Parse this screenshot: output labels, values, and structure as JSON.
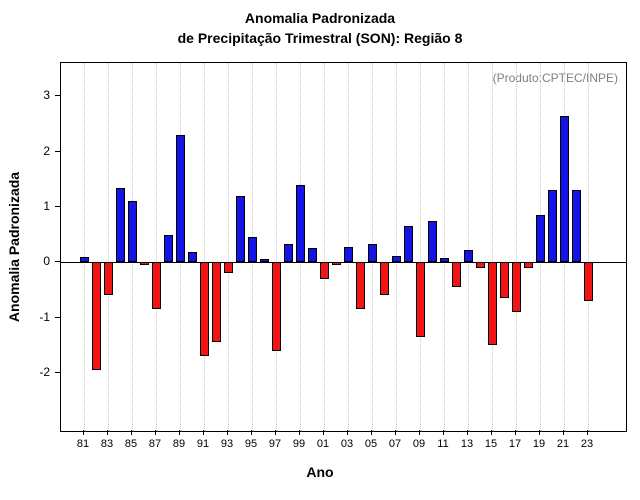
{
  "title": {
    "line1": "Anomalia Padronizada",
    "line2": "de Precipitação Trimestral (SON): Região 8"
  },
  "note": "(Produto:CPTEC/INPE)",
  "chart_data": {
    "type": "bar",
    "title": "Anomalia Padronizada de Precipitação Trimestral (SON): Região 8",
    "xlabel": "Ano",
    "ylabel": "Anomalia Padronizada",
    "years": [
      1981,
      1982,
      1983,
      1984,
      1985,
      1986,
      1987,
      1988,
      1989,
      1990,
      1991,
      1992,
      1993,
      1994,
      1995,
      1996,
      1997,
      1998,
      1999,
      2000,
      2001,
      2002,
      2003,
      2004,
      2005,
      2006,
      2007,
      2008,
      2009,
      2010,
      2011,
      2012,
      2013,
      2014,
      2015,
      2016,
      2017,
      2018,
      2019,
      2020,
      2021,
      2022,
      2023
    ],
    "values": [
      0.1,
      -1.95,
      -0.6,
      1.35,
      1.1,
      -0.05,
      -0.85,
      0.5,
      2.3,
      0.18,
      -1.7,
      -1.45,
      -0.2,
      1.2,
      0.45,
      0.05,
      -1.6,
      0.33,
      1.4,
      0.25,
      -0.3,
      -0.05,
      0.27,
      -0.85,
      0.33,
      -0.6,
      0.12,
      0.65,
      -1.35,
      0.75,
      0.08,
      -0.45,
      0.22,
      -0.1,
      -1.5,
      -0.65,
      -0.9,
      -0.1,
      0.85,
      1.3,
      2.65,
      1.3,
      -0.7
    ],
    "x_tick_labels": [
      "81",
      "83",
      "85",
      "87",
      "89",
      "91",
      "93",
      "95",
      "97",
      "99",
      "01",
      "03",
      "05",
      "07",
      "09",
      "11",
      "13",
      "15",
      "17",
      "19",
      "21",
      "23"
    ],
    "yticks": [
      -2,
      -1,
      0,
      1,
      2,
      3
    ],
    "ylim": [
      -3.05,
      3.6
    ],
    "grid": "vertical-dotted",
    "legend_position": "none",
    "colors": {
      "positive": "#1414E6",
      "negative": "#F01414",
      "bar_border": "#000000",
      "note_text": "#808080",
      "gridline": "#c8c8c8"
    }
  }
}
